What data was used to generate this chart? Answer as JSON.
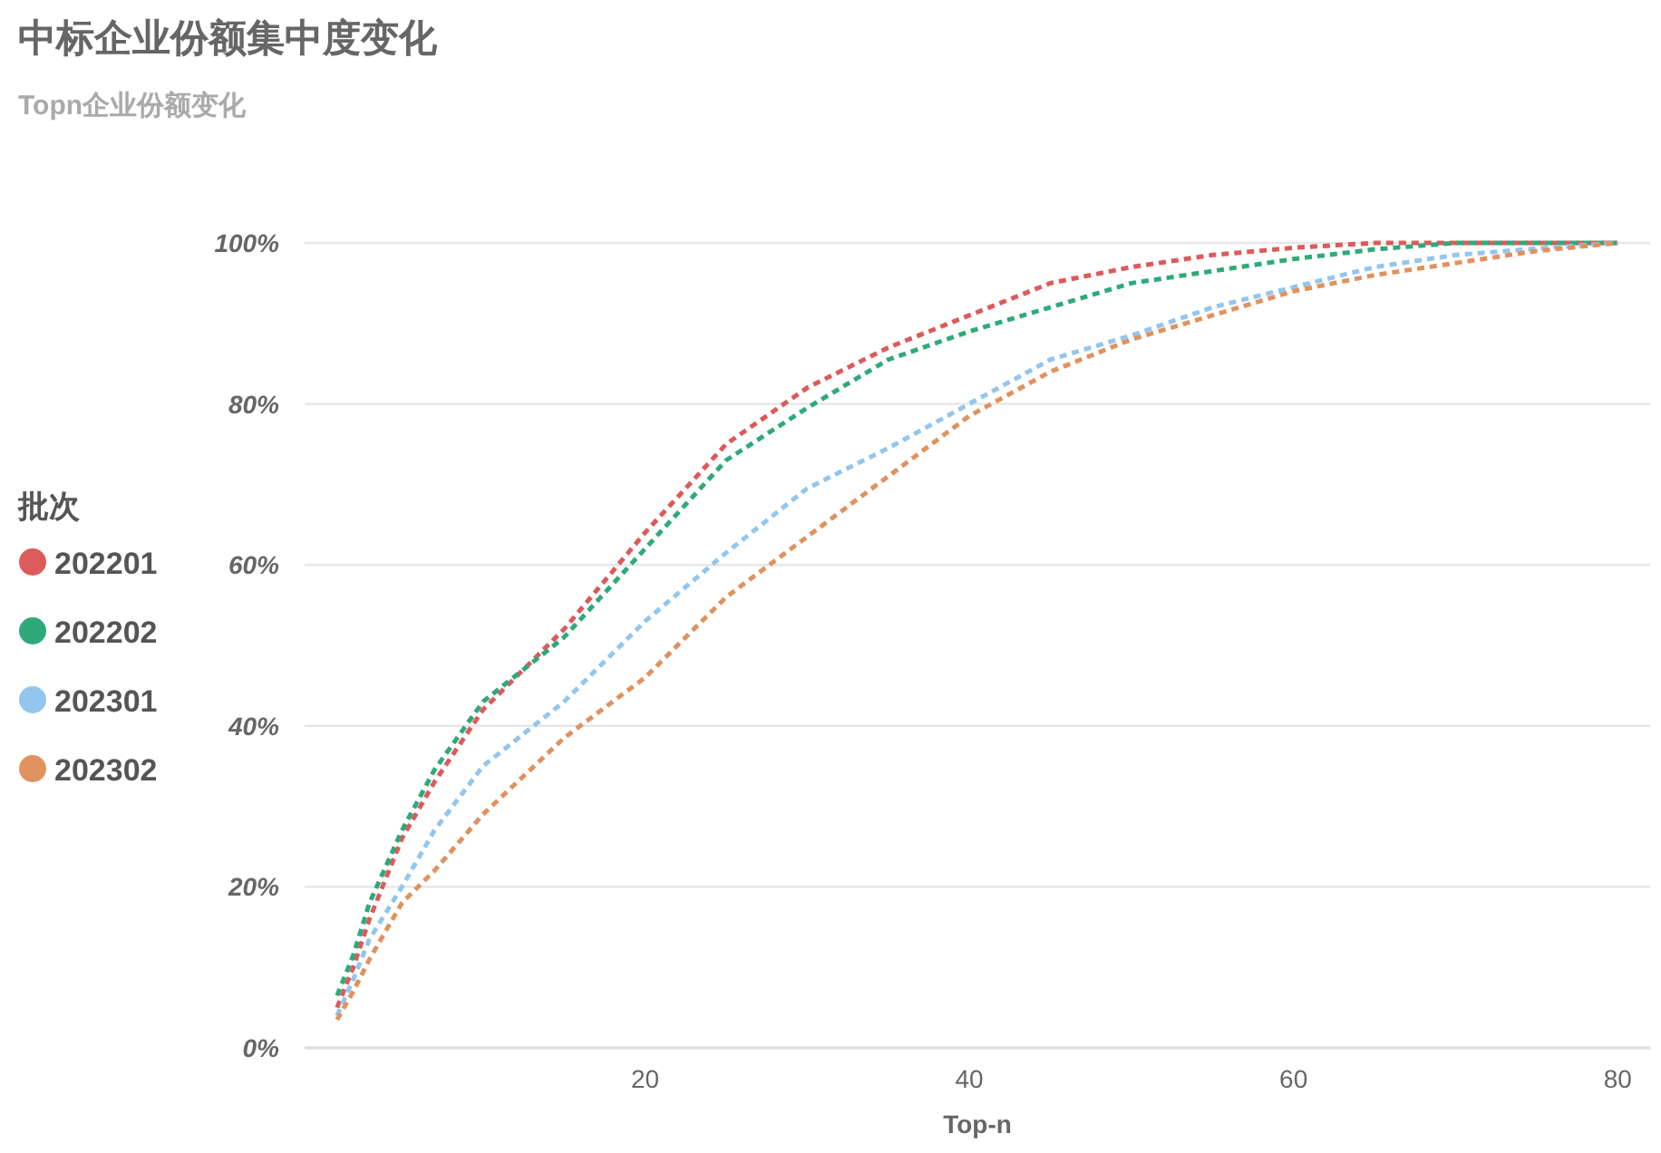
{
  "chart_data": {
    "type": "line",
    "title": "中标企业份额集中度变化",
    "subtitle": "Topn企业份额变化",
    "xlabel": "Top-n",
    "legend_title": "批次",
    "legend": "left",
    "grid": "y",
    "line_style": "dashed",
    "marker": "none",
    "x": [
      1,
      2,
      3,
      5,
      7,
      10,
      15,
      20,
      25,
      30,
      35,
      40,
      45,
      50,
      55,
      60,
      65,
      70,
      75,
      80
    ],
    "series": [
      {
        "name": "202201",
        "color": "#dd5a5a",
        "values": [
          5,
          10,
          16,
          26,
          33,
          42,
          52,
          64,
          75,
          82,
          87,
          91,
          95,
          97,
          98.5,
          99.4,
          100,
          100,
          100,
          100
        ]
      },
      {
        "name": "202202",
        "color": "#2eaa7a",
        "values": [
          6.5,
          11.5,
          18,
          27,
          34.5,
          43,
          51,
          62,
          73,
          79.5,
          85.5,
          89,
          92,
          95,
          96.5,
          98,
          99.2,
          100,
          100,
          100
        ]
      },
      {
        "name": "202301",
        "color": "#93c6ef",
        "values": [
          4,
          8.5,
          13.5,
          20,
          27,
          35,
          43,
          53,
          61.5,
          69.5,
          74.5,
          80,
          85.5,
          88.5,
          92,
          94.5,
          97,
          98.5,
          99.3,
          100
        ]
      },
      {
        "name": "202302",
        "color": "#e0925e",
        "values": [
          3.5,
          7,
          11,
          18,
          22,
          29,
          38.5,
          46,
          56,
          63.5,
          71,
          78.5,
          84,
          88,
          91,
          94,
          96,
          97.5,
          99,
          100
        ]
      }
    ],
    "xlim": [
      -1,
      82
    ],
    "xticks": [
      20,
      40,
      60,
      80
    ],
    "ylim": [
      0,
      100
    ],
    "yticks": [
      {
        "value": 0,
        "label": "0%"
      },
      {
        "value": 20,
        "label": "20%"
      },
      {
        "value": 40,
        "label": "40%"
      },
      {
        "value": 60,
        "label": "60%"
      },
      {
        "value": 80,
        "label": "80%"
      },
      {
        "value": 100,
        "label": "100%"
      }
    ]
  }
}
